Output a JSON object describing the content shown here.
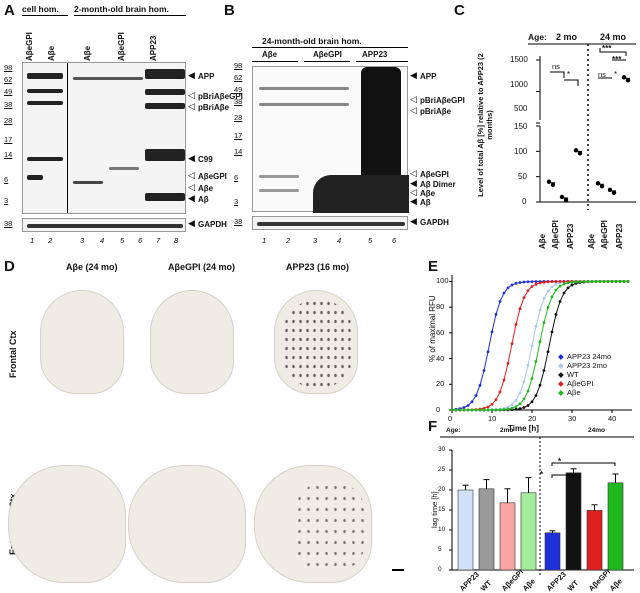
{
  "panel_letters": [
    "A",
    "B",
    "C",
    "D",
    "E",
    "F"
  ],
  "panelA": {
    "group1": "cell hom.",
    "group2": "2-month-old brain hom.",
    "lanes": [
      "AβeGPI",
      "Aβe",
      "Aβe",
      "AβeGPI",
      "APP23"
    ],
    "mw": [
      "98",
      "62",
      "49",
      "38",
      "28",
      "17",
      "14",
      "6",
      "3",
      "38"
    ],
    "markers": [
      "APP",
      "pBriAβeGPI",
      "pBriAβe",
      "C99",
      "AβeGPI",
      "Aβe",
      "Aβ",
      "GAPDH"
    ],
    "lane_numbers": [
      "1",
      "2",
      "3",
      "4",
      "5",
      "6",
      "7",
      "8"
    ]
  },
  "panelB": {
    "group": "24-month-old brain hom.",
    "lanes": [
      "Aβe",
      "AβeGPI",
      "APP23"
    ],
    "mw": [
      "98",
      "62",
      "49",
      "38",
      "28",
      "17",
      "14",
      "6",
      "3",
      "38"
    ],
    "markers": [
      "APP",
      "pBriAβeGPI",
      "pBriAβe",
      "AβeGPI",
      "Aβ Dimer",
      "Aβe",
      "Aβ",
      "GAPDH"
    ],
    "lane_numbers": [
      "1",
      "2",
      "3",
      "4",
      "5",
      "6"
    ]
  },
  "panelC": {
    "age_label": "Age:",
    "age_groups": [
      "2 mo",
      "24 mo"
    ],
    "ylabel": "Level of total Aβ [%] relative to APP23 (2 months)",
    "yticks": [
      "1500",
      "1000",
      "500",
      "150",
      "100",
      "50",
      "0"
    ],
    "xcats": [
      "Aβe",
      "AβeGPI",
      "APP23",
      "Aβe",
      "AβeGPI",
      "APP23"
    ],
    "sig": [
      "ns",
      "*",
      "ns",
      "*",
      "***",
      "***"
    ]
  },
  "panelD": {
    "columns": [
      "Aβe (24 mo)",
      "AβeGPI (24 mo)",
      "APP23 (16 mo)"
    ],
    "rows": [
      "Frontal Ctx",
      "Entorhinal Ctx"
    ]
  },
  "panelE": {
    "ylabel": "% of maximal RFU",
    "xlabel": "Time [h]",
    "yticks": [
      "0",
      "20",
      "40",
      "60",
      "80",
      "100"
    ],
    "xticks": [
      "0",
      "10",
      "20",
      "30",
      "40"
    ],
    "legend": [
      {
        "name": "APP23 24mo",
        "color": "#1f2fd8"
      },
      {
        "name": "APP23 2mo",
        "color": "#a9c8ef"
      },
      {
        "name": "WT",
        "color": "#111111"
      },
      {
        "name": "AβeGPI",
        "color": "#e02020"
      },
      {
        "name": "Aβe",
        "color": "#1fb81f"
      }
    ]
  },
  "panelF": {
    "age_label": "Age:",
    "age_groups": [
      "2mo",
      "24mo"
    ],
    "ylabel": "lag time [h]",
    "yticks": [
      "0",
      "5",
      "10",
      "15",
      "20",
      "25",
      "30"
    ],
    "sig": [
      "*",
      "*"
    ]
  },
  "chart_data": [
    {
      "type": "bar",
      "title": "",
      "ylabel": "lag time [h]",
      "ylim": [
        0,
        30
      ],
      "categories": [
        "APP23",
        "WT",
        "AβeGPI",
        "Aβe",
        "APP23",
        "WT",
        "AβeGPI",
        "Aβe"
      ],
      "values": [
        20.0,
        20.3,
        16.8,
        19.3,
        9.3,
        24.3,
        14.9,
        21.8
      ],
      "errors": [
        1.2,
        2.3,
        3.5,
        3.8,
        0.5,
        1.0,
        1.4,
        2.2
      ],
      "colors": [
        "#cfe2f7",
        "#9a9a9a",
        "#f7a4a4",
        "#a6ec9e",
        "#1f2fd8",
        "#111111",
        "#e02020",
        "#1fb81f"
      ]
    },
    {
      "type": "line",
      "xlabel": "Time [h]",
      "ylabel": "% of maximal RFU",
      "xlim": [
        0,
        45
      ],
      "ylim": [
        0,
        105
      ],
      "series": [
        {
          "name": "APP23 24mo",
          "midpoint": 9.3,
          "color": "#1f2fd8"
        },
        {
          "name": "APP23 2mo",
          "midpoint": 20.0,
          "color": "#a9c8ef"
        },
        {
          "name": "WT",
          "midpoint": 24.3,
          "color": "#111111"
        },
        {
          "name": "AβeGPI",
          "midpoint": 14.9,
          "color": "#e02020"
        },
        {
          "name": "Aβe",
          "midpoint": 21.8,
          "color": "#1fb81f"
        }
      ]
    },
    {
      "type": "scatter",
      "ylabel": "Level of total Aβ [%] relative to APP23 (2 months)",
      "categories": [
        "Aβe",
        "AβeGPI",
        "APP23",
        "Aβe",
        "AβeGPI",
        "APP23"
      ],
      "values": [
        38,
        8,
        100,
        35,
        22,
        1210
      ]
    }
  ]
}
